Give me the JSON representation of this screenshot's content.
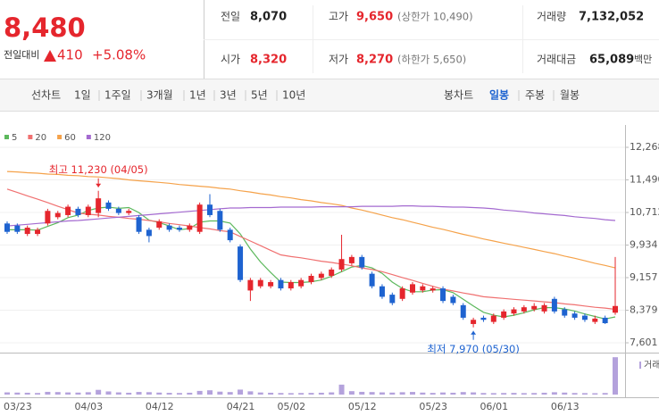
{
  "quote": {
    "price": "8,480",
    "change_label": "전일대비",
    "change": "410",
    "change_rate": "+5.08%"
  },
  "stats": [
    {
      "label": "전일",
      "value": "8,070"
    },
    {
      "label": "고가",
      "value": "9,650",
      "note": "(상한가 10,490)"
    },
    {
      "label": "거래량",
      "value": "7,132,052"
    },
    {
      "label": "시가",
      "value": "8,320"
    },
    {
      "label": "저가",
      "value": "8,270",
      "note": "(하한가 5,650)"
    },
    {
      "label": "거래대금",
      "value": "65,089",
      "unit": "백만"
    }
  ],
  "toolbar": {
    "line_chart": "선차트",
    "periods": [
      "1일",
      "1주일",
      "3개월",
      "1년",
      "3년",
      "5년",
      "10년"
    ],
    "candle_chart": "봉차트",
    "candle_periods": [
      "일봉",
      "주봉",
      "월봉"
    ]
  },
  "chart_data": {
    "type": "candlestick",
    "categories": [
      "03/23",
      null,
      null,
      null,
      null,
      null,
      null,
      "04/03",
      null,
      null,
      null,
      null,
      null,
      null,
      "04/12",
      null,
      null,
      null,
      null,
      null,
      null,
      null,
      "04/21",
      null,
      null,
      null,
      null,
      "05/02",
      null,
      null,
      null,
      null,
      null,
      null,
      "05/12",
      null,
      null,
      null,
      null,
      null,
      null,
      "05/23",
      null,
      null,
      null,
      null,
      null,
      "06/01",
      null,
      null,
      null,
      null,
      null,
      null,
      "06/13",
      null,
      null,
      null,
      null,
      null,
      null
    ],
    "open": [
      10450,
      10400,
      10200,
      10200,
      10450,
      10600,
      10650,
      10800,
      10650,
      10700,
      10950,
      10800,
      10700,
      10600,
      10300,
      10350,
      10400,
      10350,
      10300,
      10250,
      10900,
      10750,
      10300,
      9900,
      8850,
      8950,
      8950,
      9100,
      8900,
      8950,
      9050,
      9150,
      9200,
      9350,
      9500,
      9650,
      9250,
      8950,
      8750,
      8650,
      8800,
      8850,
      8850,
      8900,
      8700,
      8500,
      8050,
      8200,
      8100,
      8200,
      8300,
      8350,
      8400,
      8350,
      8650,
      8400,
      8300,
      8250,
      8100,
      8200,
      8320
    ],
    "high": [
      10500,
      10450,
      10400,
      10350,
      10800,
      10750,
      10900,
      10850,
      10900,
      11230,
      11000,
      10850,
      10800,
      10650,
      10350,
      10550,
      10450,
      10400,
      10450,
      10950,
      11150,
      10800,
      10350,
      9950,
      9150,
      9150,
      9100,
      9150,
      9100,
      9150,
      9250,
      9300,
      9400,
      10180,
      9700,
      9700,
      9300,
      9000,
      8800,
      8950,
      9050,
      9000,
      8950,
      8950,
      8750,
      8550,
      8200,
      8250,
      8300,
      8400,
      8450,
      8500,
      8550,
      8550,
      8700,
      8450,
      8350,
      8300,
      8250,
      8250,
      9650
    ],
    "low": [
      10200,
      10200,
      10150,
      10150,
      10400,
      10550,
      10600,
      10600,
      10600,
      10600,
      10750,
      10650,
      10650,
      10200,
      10000,
      10300,
      10250,
      10250,
      10250,
      10200,
      10600,
      10250,
      10000,
      9050,
      8600,
      8900,
      8900,
      8850,
      8850,
      8900,
      9000,
      9100,
      9150,
      9300,
      9450,
      9350,
      8900,
      8650,
      8500,
      8600,
      8750,
      8800,
      8800,
      8550,
      8500,
      8150,
      7970,
      8100,
      8050,
      8150,
      8250,
      8300,
      8350,
      8300,
      8300,
      8200,
      8150,
      8100,
      8050,
      8050,
      8270
    ],
    "close": [
      10250,
      10250,
      10350,
      10300,
      10750,
      10700,
      10850,
      10650,
      10850,
      11050,
      10800,
      10700,
      10750,
      10250,
      10150,
      10500,
      10300,
      10300,
      10400,
      10900,
      10650,
      10300,
      10050,
      9100,
      9100,
      9100,
      9050,
      8900,
      9050,
      9100,
      9200,
      9250,
      9350,
      9600,
      9650,
      9400,
      8950,
      8700,
      8550,
      8900,
      9000,
      8950,
      8900,
      8600,
      8550,
      8200,
      8150,
      8150,
      8250,
      8350,
      8400,
      8450,
      8480,
      8500,
      8350,
      8250,
      8200,
      8150,
      8180,
      8070,
      8480
    ],
    "up_color": "#e5262d",
    "down_color": "#1e63d0",
    "series": [
      {
        "name": "5",
        "color": "#5cb85c",
        "values": [
          10300,
          10300,
          10300,
          10290,
          10380,
          10470,
          10590,
          10650,
          10760,
          10820,
          10840,
          10810,
          10830,
          10710,
          10530,
          10470,
          10390,
          10300,
          10330,
          10480,
          10510,
          10510,
          10460,
          10200,
          9840,
          9530,
          9280,
          9050,
          9040,
          9040,
          9060,
          9100,
          9190,
          9300,
          9410,
          9450,
          9390,
          9260,
          9050,
          8900,
          8820,
          8820,
          8860,
          8870,
          8800,
          8640,
          8480,
          8330,
          8260,
          8220,
          8260,
          8320,
          8390,
          8440,
          8440,
          8410,
          8360,
          8290,
          8230,
          8170,
          8220
        ]
      },
      {
        "name": "20",
        "color": "#f07070",
        "values": [
          11270,
          11190,
          11110,
          11030,
          10950,
          10860,
          10780,
          10700,
          10670,
          10650,
          10620,
          10600,
          10570,
          10550,
          10520,
          10490,
          10450,
          10420,
          10390,
          10350,
          10320,
          10280,
          10250,
          10140,
          10030,
          9920,
          9810,
          9700,
          9660,
          9630,
          9590,
          9550,
          9520,
          9480,
          9440,
          9390,
          9350,
          9300,
          9230,
          9160,
          9090,
          9020,
          8950,
          8880,
          8840,
          8790,
          8750,
          8700,
          8680,
          8660,
          8640,
          8620,
          8600,
          8580,
          8560,
          8530,
          8510,
          8480,
          8450,
          8430,
          8400
        ]
      },
      {
        "name": "60",
        "color": "#f5a24a",
        "values": [
          11690,
          11680,
          11660,
          11650,
          11630,
          11620,
          11600,
          11590,
          11570,
          11560,
          11540,
          11520,
          11490,
          11470,
          11450,
          11430,
          11410,
          11380,
          11360,
          11340,
          11320,
          11290,
          11270,
          11230,
          11200,
          11160,
          11130,
          11090,
          11060,
          11020,
          10990,
          10950,
          10920,
          10880,
          10820,
          10770,
          10710,
          10650,
          10590,
          10540,
          10480,
          10420,
          10360,
          10310,
          10250,
          10190,
          10140,
          10080,
          10030,
          9980,
          9930,
          9880,
          9830,
          9780,
          9730,
          9670,
          9620,
          9560,
          9500,
          9450,
          9390
        ]
      },
      {
        "name": "120",
        "color": "#a46ad0",
        "values": [
          10390,
          10410,
          10430,
          10450,
          10470,
          10490,
          10510,
          10520,
          10540,
          10560,
          10580,
          10600,
          10620,
          10640,
          10660,
          10680,
          10700,
          10720,
          10740,
          10760,
          10780,
          10800,
          10820,
          10820,
          10830,
          10830,
          10830,
          10840,
          10840,
          10840,
          10840,
          10850,
          10850,
          10850,
          10850,
          10860,
          10860,
          10860,
          10860,
          10870,
          10870,
          10860,
          10860,
          10850,
          10840,
          10840,
          10830,
          10820,
          10800,
          10770,
          10750,
          10730,
          10700,
          10680,
          10660,
          10640,
          10610,
          10590,
          10570,
          10540,
          10520
        ]
      }
    ],
    "volumes": [
      420000,
      380000,
      350000,
      300000,
      520000,
      480000,
      410000,
      380000,
      450000,
      900000,
      600000,
      420000,
      350000,
      500000,
      460000,
      380000,
      330000,
      300000,
      350000,
      700000,
      820000,
      560000,
      480000,
      950000,
      620000,
      400000,
      350000,
      300000,
      280000,
      300000,
      320000,
      350000,
      420000,
      1900000,
      650000,
      520000,
      480000,
      420000,
      380000,
      450000,
      500000,
      380000,
      320000,
      400000,
      350000,
      480000,
      420000,
      300000,
      280000,
      300000,
      320000,
      280000,
      300000,
      350000,
      450000,
      380000,
      300000,
      280000,
      260000,
      300000,
      7132052
    ],
    "volume_color": "#b4a2dc",
    "volume_label": "거래",
    "vlim": [
      0,
      7500000
    ],
    "ylim": [
      7367,
      12588
    ],
    "yticks": [
      {
        "value": 12268,
        "label": "12,268"
      },
      {
        "value": 11490,
        "label": "11,490"
      },
      {
        "value": 10712,
        "label": "10,712"
      },
      {
        "value": 9934,
        "label": "9,934"
      },
      {
        "value": 9157,
        "label": "9,157"
      },
      {
        "value": 8379,
        "label": "8,379"
      },
      {
        "value": 7601,
        "label": "7,601"
      }
    ],
    "grid": true,
    "annotations": [
      {
        "text": "최고 11,230 (04/05)",
        "value": 11230,
        "on": "high",
        "color": "#e5262d"
      },
      {
        "text": "최저 7,970 (05/30)",
        "value": 7970,
        "on": "low",
        "color": "#1e63d0"
      }
    ]
  }
}
